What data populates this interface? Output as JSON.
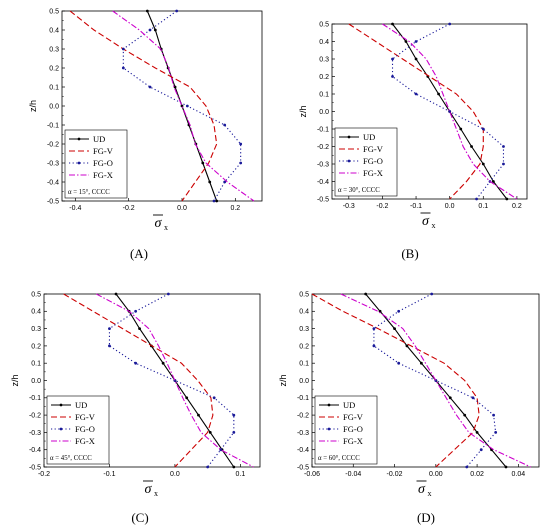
{
  "chart_data": [
    {
      "type": "line",
      "caption": "(A)",
      "xlabel_symbol": "σ",
      "xlabel_subscript": "x",
      "ylabel": "z/h",
      "xlim": [
        -0.45,
        0.3
      ],
      "xticks": [
        -0.4,
        -0.2,
        0.0,
        0.2
      ],
      "xtick_labels": [
        "-0.4",
        "-0.2",
        "0.0",
        "0.2"
      ],
      "ylim": [
        -0.5,
        0.5
      ],
      "yticks": [
        0.5,
        0.4,
        0.3,
        0.2,
        0.1,
        0.0,
        -0.1,
        -0.2,
        -0.3,
        -0.4,
        -0.5
      ],
      "ytick_labels": [
        "0.5",
        "0.4",
        "0.3",
        "0.2",
        "0.1",
        "0.0",
        "-0.1",
        "-0.2",
        "-0.3",
        "-0.4",
        "-0.5"
      ],
      "legend_position": "bottom-left",
      "note": "α = 15°, CCCC",
      "series": [
        {
          "name": "UD",
          "color": "#000000",
          "dash": "solid",
          "marker": "dot",
          "points": [
            [
              -0.13,
              0.5
            ],
            [
              -0.1,
              0.4
            ],
            [
              -0.078,
              0.3
            ],
            [
              -0.052,
              0.2
            ],
            [
              -0.026,
              0.1
            ],
            [
              0.0,
              0.0
            ],
            [
              0.026,
              -0.1
            ],
            [
              0.052,
              -0.2
            ],
            [
              0.078,
              -0.3
            ],
            [
              0.104,
              -0.4
            ],
            [
              0.13,
              -0.5
            ]
          ]
        },
        {
          "name": "FG-V",
          "color": "#cc0000",
          "dash": "dashed",
          "marker": "none",
          "points": [
            [
              -0.42,
              0.5
            ],
            [
              -0.33,
              0.4
            ],
            [
              -0.22,
              0.3
            ],
            [
              -0.1,
              0.2
            ],
            [
              0.03,
              0.1
            ],
            [
              0.09,
              0.0
            ],
            [
              0.12,
              -0.1
            ],
            [
              0.13,
              -0.2
            ],
            [
              0.1,
              -0.3
            ],
            [
              0.05,
              -0.4
            ],
            [
              0.0,
              -0.5
            ]
          ]
        },
        {
          "name": "FG-O",
          "color": "#1a1a99",
          "dash": "dotted",
          "marker": "dot",
          "points": [
            [
              -0.02,
              0.5
            ],
            [
              -0.12,
              0.4
            ],
            [
              -0.22,
              0.3
            ],
            [
              -0.22,
              0.2
            ],
            [
              -0.12,
              0.1
            ],
            [
              0.02,
              0.0
            ],
            [
              0.16,
              -0.1
            ],
            [
              0.22,
              -0.2
            ],
            [
              0.22,
              -0.3
            ],
            [
              0.16,
              -0.4
            ],
            [
              0.12,
              -0.5
            ]
          ]
        },
        {
          "name": "FG-X",
          "color": "#cc00cc",
          "dash": "dashdot",
          "marker": "none",
          "points": [
            [
              -0.26,
              0.5
            ],
            [
              -0.16,
              0.4
            ],
            [
              -0.08,
              0.3
            ],
            [
              -0.05,
              0.2
            ],
            [
              -0.03,
              0.1
            ],
            [
              0.0,
              0.0
            ],
            [
              0.03,
              -0.1
            ],
            [
              0.05,
              -0.2
            ],
            [
              0.09,
              -0.3
            ],
            [
              0.17,
              -0.4
            ],
            [
              0.27,
              -0.5
            ]
          ]
        }
      ]
    },
    {
      "type": "line",
      "caption": "(B)",
      "xlabel_symbol": "σ",
      "xlabel_subscript": "x",
      "ylabel": "z/h",
      "xlim": [
        -0.35,
        0.23
      ],
      "xticks": [
        -0.3,
        -0.2,
        -0.1,
        0.0,
        0.1,
        0.2
      ],
      "xtick_labels": [
        "-0.3",
        "-0.2",
        "-0.1",
        "0.0",
        "0.1",
        "0.2"
      ],
      "ylim": [
        -0.5,
        0.5
      ],
      "yticks": [
        0.5,
        0.4,
        0.3,
        0.2,
        0.1,
        0.0,
        -0.1,
        -0.2,
        -0.3,
        -0.4,
        -0.5
      ],
      "ytick_labels": [
        "0.5",
        "0.4",
        "0.3",
        "0.2",
        "0.1",
        "0.0",
        "-0.1",
        "-0.2",
        "-0.3",
        "-0.4",
        "-0.5"
      ],
      "legend_position": "bottom-left",
      "note": "α = 30°, CCCC",
      "series": [
        {
          "name": "UD",
          "color": "#000000",
          "dash": "solid",
          "marker": "dot",
          "points": [
            [
              -0.17,
              0.5
            ],
            [
              -0.13,
              0.4
            ],
            [
              -0.1,
              0.3
            ],
            [
              -0.065,
              0.2
            ],
            [
              -0.033,
              0.1
            ],
            [
              0.0,
              0.0
            ],
            [
              0.033,
              -0.1
            ],
            [
              0.065,
              -0.2
            ],
            [
              0.1,
              -0.3
            ],
            [
              0.13,
              -0.4
            ],
            [
              0.17,
              -0.5
            ]
          ]
        },
        {
          "name": "FG-V",
          "color": "#cc0000",
          "dash": "dashed",
          "marker": "none",
          "points": [
            [
              -0.3,
              0.5
            ],
            [
              -0.22,
              0.4
            ],
            [
              -0.14,
              0.3
            ],
            [
              -0.06,
              0.2
            ],
            [
              0.02,
              0.1
            ],
            [
              0.07,
              0.0
            ],
            [
              0.1,
              -0.1
            ],
            [
              0.1,
              -0.2
            ],
            [
              0.09,
              -0.3
            ],
            [
              0.05,
              -0.4
            ],
            [
              0.0,
              -0.5
            ]
          ]
        },
        {
          "name": "FG-O",
          "color": "#1a1a99",
          "dash": "dotted",
          "marker": "dot",
          "points": [
            [
              0.0,
              0.5
            ],
            [
              -0.1,
              0.4
            ],
            [
              -0.17,
              0.3
            ],
            [
              -0.17,
              0.2
            ],
            [
              -0.1,
              0.1
            ],
            [
              0.0,
              0.0
            ],
            [
              0.1,
              -0.1
            ],
            [
              0.16,
              -0.2
            ],
            [
              0.16,
              -0.3
            ],
            [
              0.12,
              -0.4
            ],
            [
              0.08,
              -0.5
            ]
          ]
        },
        {
          "name": "FG-X",
          "color": "#cc00cc",
          "dash": "dashdot",
          "marker": "none",
          "points": [
            [
              -0.2,
              0.5
            ],
            [
              -0.12,
              0.4
            ],
            [
              -0.07,
              0.3
            ],
            [
              -0.04,
              0.2
            ],
            [
              -0.02,
              0.1
            ],
            [
              0.0,
              0.0
            ],
            [
              0.02,
              -0.1
            ],
            [
              0.04,
              -0.2
            ],
            [
              0.07,
              -0.3
            ],
            [
              0.12,
              -0.4
            ],
            [
              0.2,
              -0.5
            ]
          ]
        }
      ]
    },
    {
      "type": "line",
      "caption": "(C)",
      "xlabel_symbol": "σ",
      "xlabel_subscript": "x",
      "ylabel": "z/h",
      "xlim": [
        -0.2,
        0.13
      ],
      "xticks": [
        -0.2,
        -0.1,
        0.0,
        0.1
      ],
      "xtick_labels": [
        "-0.2",
        "-0.1",
        "0.0",
        "0.1"
      ],
      "ylim": [
        -0.5,
        0.5
      ],
      "yticks": [
        0.5,
        0.4,
        0.3,
        0.2,
        0.1,
        0.0,
        -0.1,
        -0.2,
        -0.3,
        -0.4,
        -0.5
      ],
      "ytick_labels": [
        "0.5",
        "0.4",
        "0.3",
        "0.2",
        "0.1",
        "0.0",
        "-0.1",
        "-0.2",
        "-0.3",
        "-0.4",
        "-0.5"
      ],
      "legend_position": "bottom-left",
      "note": "α = 45°, CCCC",
      "series": [
        {
          "name": "UD",
          "color": "#000000",
          "dash": "solid",
          "marker": "dot",
          "points": [
            [
              -0.09,
              0.5
            ],
            [
              -0.07,
              0.4
            ],
            [
              -0.054,
              0.3
            ],
            [
              -0.036,
              0.2
            ],
            [
              -0.018,
              0.1
            ],
            [
              0.0,
              0.0
            ],
            [
              0.018,
              -0.1
            ],
            [
              0.036,
              -0.2
            ],
            [
              0.054,
              -0.3
            ],
            [
              0.072,
              -0.4
            ],
            [
              0.09,
              -0.5
            ]
          ]
        },
        {
          "name": "FG-V",
          "color": "#cc0000",
          "dash": "dashed",
          "marker": "none",
          "points": [
            [
              -0.17,
              0.5
            ],
            [
              -0.125,
              0.4
            ],
            [
              -0.08,
              0.3
            ],
            [
              -0.035,
              0.2
            ],
            [
              0.01,
              0.1
            ],
            [
              0.035,
              0.0
            ],
            [
              0.055,
              -0.1
            ],
            [
              0.058,
              -0.2
            ],
            [
              0.05,
              -0.3
            ],
            [
              0.025,
              -0.4
            ],
            [
              0.0,
              -0.5
            ]
          ]
        },
        {
          "name": "FG-O",
          "color": "#1a1a99",
          "dash": "dotted",
          "marker": "dot",
          "points": [
            [
              -0.01,
              0.5
            ],
            [
              -0.06,
              0.4
            ],
            [
              -0.1,
              0.3
            ],
            [
              -0.1,
              0.2
            ],
            [
              -0.06,
              0.1
            ],
            [
              0.0,
              0.0
            ],
            [
              0.06,
              -0.1
            ],
            [
              0.09,
              -0.2
            ],
            [
              0.09,
              -0.3
            ],
            [
              0.07,
              -0.4
            ],
            [
              0.05,
              -0.5
            ]
          ]
        },
        {
          "name": "FG-X",
          "color": "#cc00cc",
          "dash": "dashdot",
          "marker": "none",
          "points": [
            [
              -0.12,
              0.5
            ],
            [
              -0.07,
              0.4
            ],
            [
              -0.04,
              0.3
            ],
            [
              -0.025,
              0.2
            ],
            [
              -0.012,
              0.1
            ],
            [
              0.0,
              0.0
            ],
            [
              0.012,
              -0.1
            ],
            [
              0.025,
              -0.2
            ],
            [
              0.04,
              -0.3
            ],
            [
              0.07,
              -0.4
            ],
            [
              0.12,
              -0.5
            ]
          ]
        }
      ]
    },
    {
      "type": "line",
      "caption": "(D)",
      "xlabel_symbol": "σ",
      "xlabel_subscript": "x",
      "ylabel": "z/h",
      "xlim": [
        -0.06,
        0.05
      ],
      "xticks": [
        -0.06,
        -0.04,
        -0.02,
        0.0,
        0.02,
        0.04
      ],
      "xtick_labels": [
        "-0.06",
        "-0.04",
        "-0.02",
        "0.00",
        "0.02",
        "0.04"
      ],
      "ylim": [
        -0.5,
        0.5
      ],
      "yticks": [
        0.5,
        0.4,
        0.3,
        0.2,
        0.1,
        0.0,
        -0.1,
        -0.2,
        -0.3,
        -0.4,
        -0.5
      ],
      "ytick_labels": [
        "0.5",
        "0.4",
        "0.3",
        "0.2",
        "0.1",
        "0.0",
        "-0.1",
        "-0.2",
        "-0.3",
        "-0.4",
        "-0.5"
      ],
      "legend_position": "bottom-left",
      "note": "α = 60°, CCCC",
      "series": [
        {
          "name": "UD",
          "color": "#000000",
          "dash": "solid",
          "marker": "dot",
          "points": [
            [
              -0.034,
              0.5
            ],
            [
              -0.027,
              0.4
            ],
            [
              -0.02,
              0.3
            ],
            [
              -0.014,
              0.2
            ],
            [
              -0.007,
              0.1
            ],
            [
              0.0,
              0.0
            ],
            [
              0.007,
              -0.1
            ],
            [
              0.014,
              -0.2
            ],
            [
              0.02,
              -0.3
            ],
            [
              0.027,
              -0.4
            ],
            [
              0.034,
              -0.5
            ]
          ]
        },
        {
          "name": "FG-V",
          "color": "#cc0000",
          "dash": "dashed",
          "marker": "none",
          "points": [
            [
              -0.06,
              0.5
            ],
            [
              -0.045,
              0.4
            ],
            [
              -0.028,
              0.3
            ],
            [
              -0.012,
              0.2
            ],
            [
              0.004,
              0.1
            ],
            [
              0.014,
              0.0
            ],
            [
              0.02,
              -0.1
            ],
            [
              0.021,
              -0.2
            ],
            [
              0.018,
              -0.3
            ],
            [
              0.009,
              -0.4
            ],
            [
              0.0,
              -0.5
            ]
          ]
        },
        {
          "name": "FG-O",
          "color": "#1a1a99",
          "dash": "dotted",
          "marker": "dot",
          "points": [
            [
              -0.002,
              0.5
            ],
            [
              -0.018,
              0.4
            ],
            [
              -0.03,
              0.3
            ],
            [
              -0.03,
              0.2
            ],
            [
              -0.018,
              0.1
            ],
            [
              0.0,
              0.0
            ],
            [
              0.018,
              -0.1
            ],
            [
              0.028,
              -0.2
            ],
            [
              0.029,
              -0.3
            ],
            [
              0.022,
              -0.4
            ],
            [
              0.015,
              -0.5
            ]
          ]
        },
        {
          "name": "FG-X",
          "color": "#cc00cc",
          "dash": "dashdot",
          "marker": "none",
          "points": [
            [
              -0.046,
              0.5
            ],
            [
              -0.028,
              0.4
            ],
            [
              -0.016,
              0.3
            ],
            [
              -0.01,
              0.2
            ],
            [
              -0.005,
              0.1
            ],
            [
              0.0,
              0.0
            ],
            [
              0.005,
              -0.1
            ],
            [
              0.01,
              -0.2
            ],
            [
              0.016,
              -0.3
            ],
            [
              0.028,
              -0.4
            ],
            [
              0.046,
              -0.5
            ]
          ]
        }
      ]
    }
  ]
}
